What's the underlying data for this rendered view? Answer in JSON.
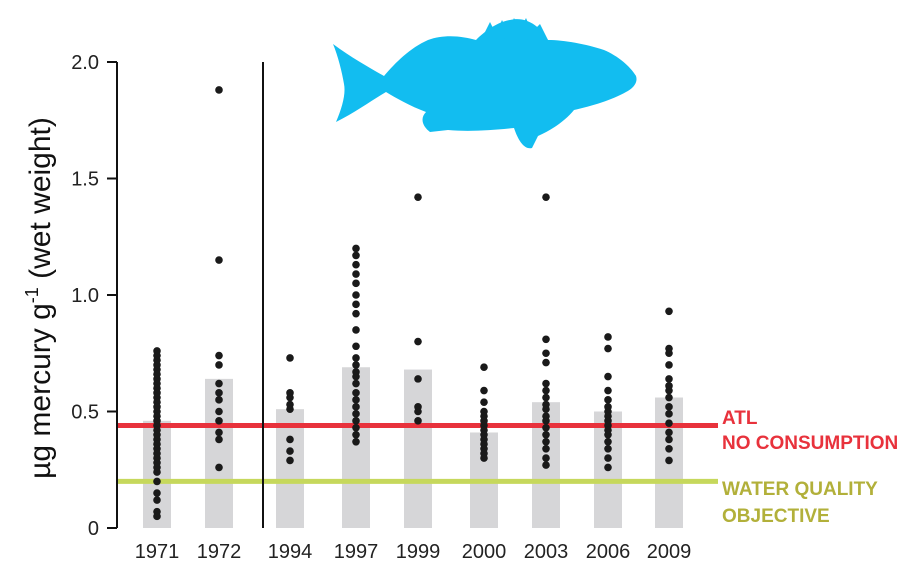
{
  "chart_data": {
    "type": "scatter",
    "title": "",
    "ylabel": "µg mercury g",
    "ylabel_sup": "-1",
    "ylabel_suffix": " (wet weight)",
    "ylim": [
      0,
      2.0
    ],
    "yticks": [
      0,
      0.5,
      1.0,
      1.5,
      2.0
    ],
    "ytick_labels": [
      "0",
      "0.5",
      "1.0",
      "1.5",
      "2.0"
    ],
    "categories": [
      "1971",
      "1972",
      "1994",
      "1997",
      "1999",
      "2000",
      "2003",
      "2006",
      "2009"
    ],
    "means": [
      0.46,
      0.64,
      0.51,
      0.69,
      0.68,
      0.41,
      0.54,
      0.5,
      0.56
    ],
    "points": [
      [
        0.76,
        0.74,
        0.72,
        0.7,
        0.68,
        0.66,
        0.64,
        0.62,
        0.6,
        0.58,
        0.56,
        0.54,
        0.52,
        0.5,
        0.48,
        0.46,
        0.44,
        0.42,
        0.4,
        0.38,
        0.36,
        0.34,
        0.32,
        0.3,
        0.28,
        0.26,
        0.24,
        0.2,
        0.15,
        0.12,
        0.07,
        0.05
      ],
      [
        1.88,
        1.15,
        0.74,
        0.7,
        0.62,
        0.58,
        0.55,
        0.5,
        0.46,
        0.41,
        0.38,
        0.26
      ],
      [
        0.73,
        0.58,
        0.56,
        0.53,
        0.51,
        0.38,
        0.33,
        0.29
      ],
      [
        1.2,
        1.17,
        1.13,
        1.09,
        1.05,
        1.0,
        0.96,
        0.92,
        0.85,
        0.78,
        0.73,
        0.7,
        0.67,
        0.65,
        0.62,
        0.58,
        0.55,
        0.52,
        0.49,
        0.46,
        0.43,
        0.4,
        0.37
      ],
      [
        1.42,
        0.8,
        0.64,
        0.52,
        0.5,
        0.46
      ],
      [
        0.69,
        0.59,
        0.54,
        0.5,
        0.48,
        0.46,
        0.44,
        0.42,
        0.4,
        0.38,
        0.36,
        0.34,
        0.32,
        0.3
      ],
      [
        1.42,
        0.81,
        0.75,
        0.71,
        0.62,
        0.59,
        0.56,
        0.53,
        0.51,
        0.48,
        0.46,
        0.43,
        0.4,
        0.37,
        0.34,
        0.3,
        0.27
      ],
      [
        0.82,
        0.77,
        0.65,
        0.59,
        0.55,
        0.52,
        0.5,
        0.48,
        0.46,
        0.44,
        0.42,
        0.4,
        0.37,
        0.34,
        0.3,
        0.26
      ],
      [
        0.93,
        0.77,
        0.75,
        0.7,
        0.64,
        0.61,
        0.59,
        0.56,
        0.52,
        0.49,
        0.45,
        0.41,
        0.38,
        0.34,
        0.29
      ]
    ],
    "reference_lines": [
      {
        "name": "ATL",
        "name_line2": "NO CONSUMPTION",
        "value": 0.44,
        "color": "#e8323c"
      },
      {
        "name": "WATER QUALITY",
        "name_line2": "OBJECTIVE",
        "value": 0.2,
        "color": "#c6d85c",
        "text_color": "#b2b03a"
      }
    ],
    "bar_color": "#d6d6d8",
    "point_color": "#1a1a1a",
    "fish_color": "#12bdf0",
    "icon": "fish-silhouette-icon",
    "grid": false
  }
}
